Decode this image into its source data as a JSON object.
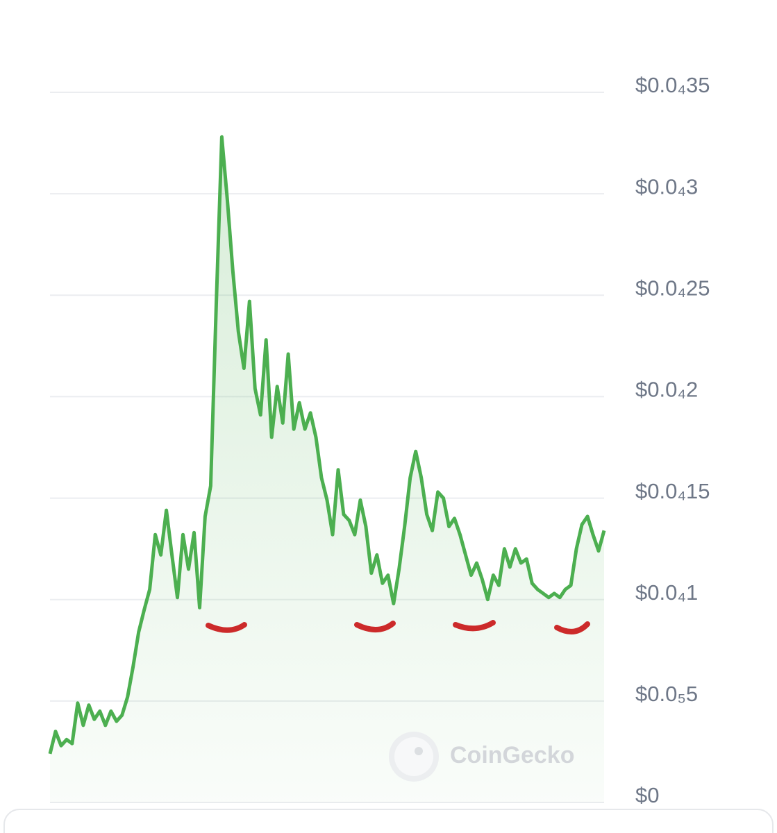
{
  "chart_data": {
    "type": "line",
    "watermark": "CoinGecko",
    "color": "#4caf50",
    "grid": true,
    "values": [
      2.4e-06,
      3.5e-06,
      2.8e-06,
      3.1e-06,
      2.9e-06,
      4.9e-06,
      3.8e-06,
      4.8e-06,
      4.1e-06,
      4.5e-06,
      3.8e-06,
      4.5e-06,
      4e-06,
      4.3e-06,
      5.2e-06,
      6.7e-06,
      8.4e-06,
      9.5e-06,
      1.05e-05,
      1.32e-05,
      1.22e-05,
      1.44e-05,
      1.22e-05,
      1.01e-05,
      1.32e-05,
      1.15e-05,
      1.33e-05,
      9.6e-06,
      1.41e-05,
      1.56e-05,
      2.45e-05,
      3.28e-05,
      2.97e-05,
      2.62e-05,
      2.32e-05,
      2.14e-05,
      2.47e-05,
      2.04e-05,
      1.91e-05,
      2.28e-05,
      1.8e-05,
      2.05e-05,
      1.87e-05,
      2.21e-05,
      1.84e-05,
      1.97e-05,
      1.84e-05,
      1.92e-05,
      1.8e-05,
      1.6e-05,
      1.49e-05,
      1.32e-05,
      1.64e-05,
      1.42e-05,
      1.39e-05,
      1.32e-05,
      1.49e-05,
      1.36e-05,
      1.13e-05,
      1.22e-05,
      1.08e-05,
      1.12e-05,
      9.8e-06,
      1.15e-05,
      1.36e-05,
      1.6e-05,
      1.73e-05,
      1.6e-05,
      1.42e-05,
      1.34e-05,
      1.53e-05,
      1.5e-05,
      1.36e-05,
      1.4e-05,
      1.32e-05,
      1.22e-05,
      1.12e-05,
      1.18e-05,
      1.1e-05,
      1e-05,
      1.12e-05,
      1.07e-05,
      1.25e-05,
      1.16e-05,
      1.25e-05,
      1.18e-05,
      1.2e-05,
      1.08e-05,
      1.05e-05,
      1.03e-05,
      1.01e-05,
      1.03e-05,
      1.01e-05,
      1.05e-05,
      1.07e-05,
      1.25e-05,
      1.37e-05,
      1.41e-05,
      1.32e-05,
      1.24e-05,
      1.34e-05
    ],
    "ylim": [
      0,
      3.5e-05
    ],
    "yticks": [
      {
        "value": 0,
        "label": "$0"
      },
      {
        "value": 5e-06,
        "label": "$0.0₅5"
      },
      {
        "value": 1e-05,
        "label": "$0.0₄1"
      },
      {
        "value": 1.5e-05,
        "label": "$0.0₄15"
      },
      {
        "value": 2e-05,
        "label": "$0.0₄2"
      },
      {
        "value": 2.5e-05,
        "label": "$0.0₄25"
      },
      {
        "value": 3e-05,
        "label": "$0.0₄3"
      },
      {
        "value": 3.5e-05,
        "label": "$0.0₄35"
      }
    ]
  }
}
